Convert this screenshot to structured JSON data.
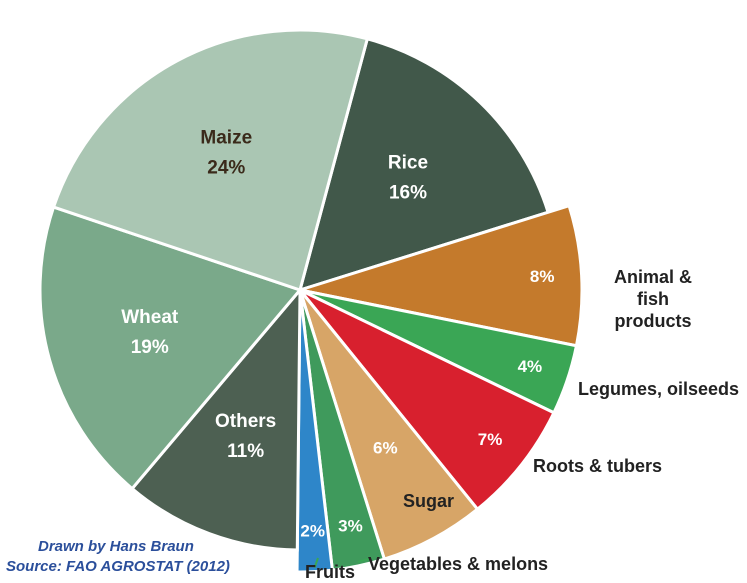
{
  "chart_data": {
    "type": "pie",
    "categories": [
      "Rice",
      "Animal & fish products",
      "Legumes, oilseeds",
      "Roots & tubers",
      "Sugar",
      "Vegetables & melons",
      "Fruits",
      "Others",
      "Wheat",
      "Maize"
    ],
    "values": [
      16,
      8,
      4,
      7,
      6,
      3,
      2,
      11,
      19,
      24
    ],
    "value_labels": [
      "16%",
      "8%",
      "4%",
      "7%",
      "6%",
      "3%",
      "2%",
      "11%",
      "19%",
      "24%"
    ],
    "colors": [
      "#41584a",
      "#c47a2c",
      "#3aa655",
      "#d8202e",
      "#d7a567",
      "#3f9a5c",
      "#2e86c9",
      "#4d6052",
      "#7aa98a",
      "#aac6b3"
    ],
    "notes": [
      "Drawn by Hans Braun",
      "Source: FAO AGROSTAT (2012)"
    ]
  }
}
